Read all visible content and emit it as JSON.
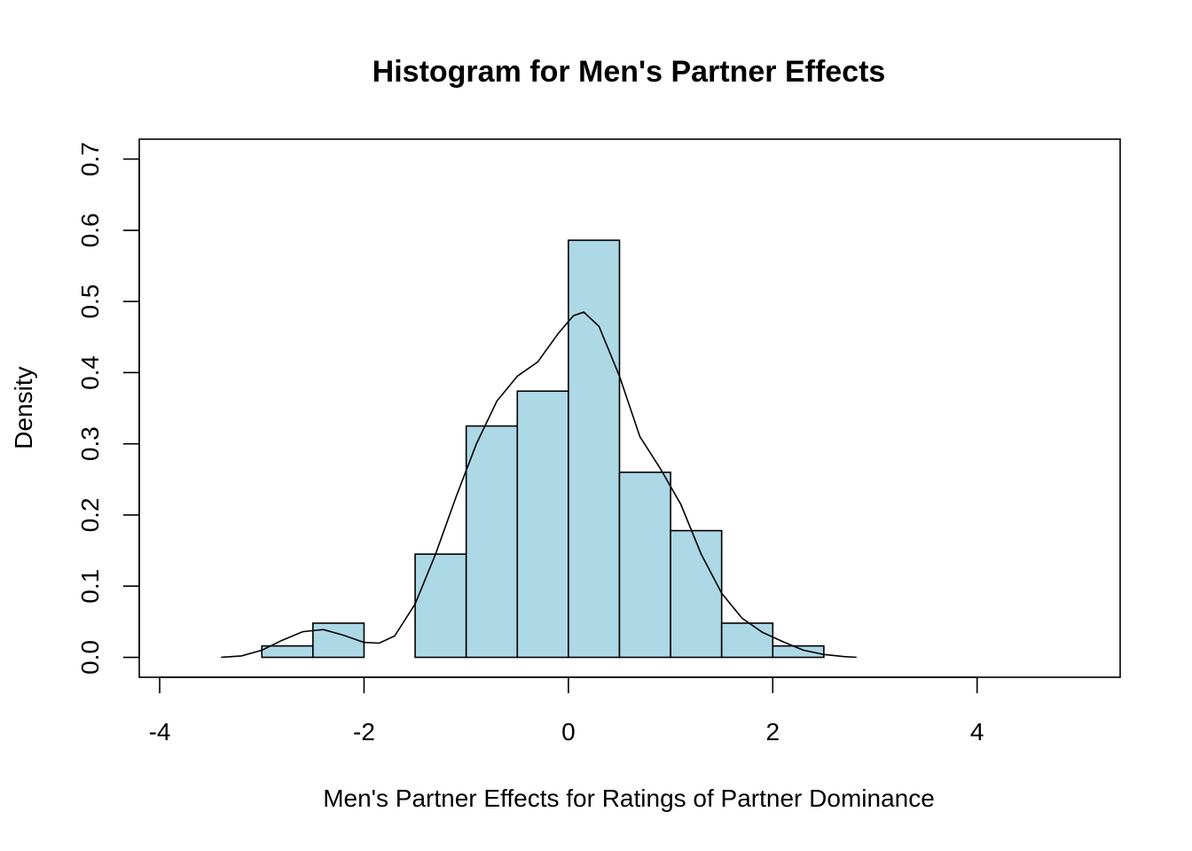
{
  "chart_data": {
    "type": "bar",
    "title": "Histogram for Men's Partner Effects",
    "xlabel": "Men's Partner Effects for Ratings of Partner Dominance",
    "ylabel": "Density",
    "xlim": [
      -4.2,
      5.4
    ],
    "ylim": [
      -0.028,
      0.728
    ],
    "x_ticks": [
      -4,
      -2,
      0,
      2,
      4
    ],
    "x_tick_labels": [
      "-4",
      "-2",
      "0",
      "2",
      "4"
    ],
    "y_ticks": [
      0.0,
      0.1,
      0.2,
      0.3,
      0.4,
      0.5,
      0.6,
      0.7
    ],
    "y_tick_labels": [
      "0.0",
      "0.1",
      "0.2",
      "0.3",
      "0.4",
      "0.5",
      "0.6",
      "0.7"
    ],
    "bar_color": "#add8e6",
    "grid": false,
    "bins": [
      {
        "x0": -3.0,
        "x1": -2.5,
        "density": 0.016
      },
      {
        "x0": -2.5,
        "x1": -2.0,
        "density": 0.048
      },
      {
        "x0": -2.0,
        "x1": -1.5,
        "density": 0.0
      },
      {
        "x0": -1.5,
        "x1": -1.0,
        "density": 0.145
      },
      {
        "x0": -1.0,
        "x1": -0.5,
        "density": 0.325
      },
      {
        "x0": -0.5,
        "x1": 0.0,
        "density": 0.374
      },
      {
        "x0": 0.0,
        "x1": 0.5,
        "density": 0.586
      },
      {
        "x0": 0.5,
        "x1": 1.0,
        "density": 0.26
      },
      {
        "x0": 1.0,
        "x1": 1.5,
        "density": 0.178
      },
      {
        "x0": 1.5,
        "x1": 2.0,
        "density": 0.048
      },
      {
        "x0": 2.0,
        "x1": 2.5,
        "density": 0.016
      }
    ],
    "density_curve": {
      "x": [
        -3.4,
        -3.2,
        -3.0,
        -2.8,
        -2.6,
        -2.4,
        -2.2,
        -2.0,
        -1.85,
        -1.7,
        -1.5,
        -1.3,
        -1.1,
        -0.9,
        -0.7,
        -0.5,
        -0.3,
        -0.1,
        0.05,
        0.15,
        0.3,
        0.5,
        0.7,
        0.9,
        1.1,
        1.3,
        1.5,
        1.7,
        1.9,
        2.1,
        2.3,
        2.5,
        2.7,
        2.82
      ],
      "y": [
        0.0,
        0.002,
        0.01,
        0.024,
        0.036,
        0.039,
        0.031,
        0.021,
        0.02,
        0.03,
        0.075,
        0.145,
        0.225,
        0.3,
        0.36,
        0.395,
        0.415,
        0.455,
        0.48,
        0.485,
        0.465,
        0.395,
        0.31,
        0.265,
        0.215,
        0.145,
        0.09,
        0.055,
        0.035,
        0.022,
        0.01,
        0.004,
        0.001,
        0.0
      ]
    }
  }
}
